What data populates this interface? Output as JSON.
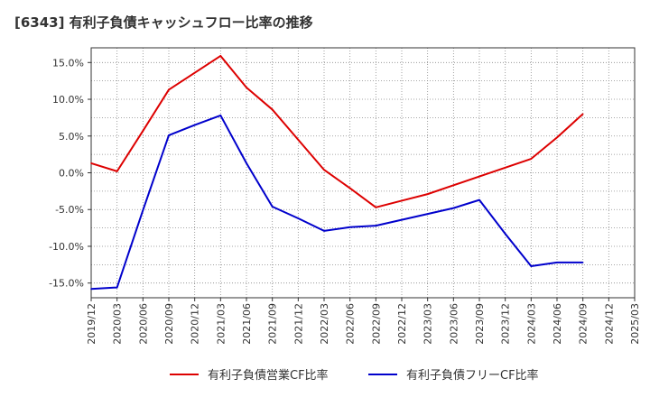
{
  "chart_data": {
    "type": "line",
    "title": "[6343]  有利子負債キャッシュフロー比率の推移",
    "x": [
      "2019/12",
      "2020/03",
      "2020/06",
      "2020/09",
      "2020/12",
      "2021/03",
      "2021/06",
      "2021/09",
      "2021/12",
      "2022/03",
      "2022/06",
      "2022/09",
      "2022/12",
      "2023/03",
      "2023/06",
      "2023/09",
      "2023/12",
      "2024/03",
      "2024/06",
      "2024/09",
      "2024/12",
      "2025/03"
    ],
    "yticks": [
      "15.0%",
      "10.0%",
      "5.0%",
      "0.0%",
      "-5.0%",
      "-10.0%",
      "-15.0%"
    ],
    "ylim": [
      -17,
      17
    ],
    "grid": true,
    "legend_position": "bottom",
    "series": [
      {
        "name": "有利子負債営業CF比率",
        "color": "#dd0000",
        "values": [
          1.3,
          0.2,
          5.7,
          11.3,
          13.6,
          15.9,
          11.6,
          8.6,
          4.5,
          0.4,
          -2.1,
          -4.7,
          -3.8,
          -2.9,
          -1.7,
          -0.5,
          0.7,
          1.9,
          4.8,
          8.0,
          null,
          null
        ]
      },
      {
        "name": "有利子負債フリーCF比率",
        "color": "#0000cc",
        "values": [
          -15.8,
          -15.6,
          -5.1,
          5.1,
          6.5,
          7.8,
          1.3,
          -4.6,
          -6.2,
          -7.9,
          -7.4,
          -7.2,
          -6.4,
          -5.6,
          -4.8,
          -3.7,
          -8.3,
          -12.7,
          -12.2,
          -12.2,
          null,
          null
        ]
      }
    ]
  }
}
